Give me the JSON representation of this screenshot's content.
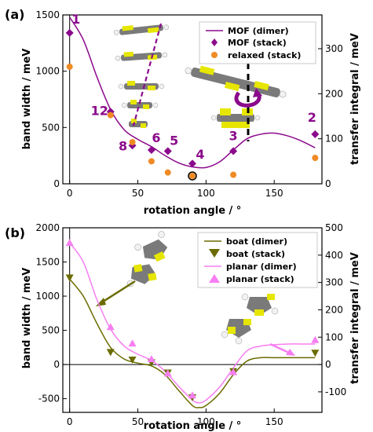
{
  "colors": {
    "mof": "#8b0a8b",
    "relaxed": "#f08a24",
    "boat": "#6b6b00",
    "planar": "#f77ef2",
    "sulfur": "#e6e600",
    "carbon": "#7a7a7a",
    "hydrogen": "#f2f2f2",
    "axis": "#000000"
  },
  "chart_data": [
    {
      "panel_label": "(a)",
      "type": "line",
      "xlabel": "rotation angle / °",
      "ylabel": "band width / meV",
      "y2label": "transfer integral / meV",
      "xlim": [
        -5,
        185
      ],
      "ylim": [
        0,
        1500
      ],
      "y2lim": [
        0,
        375
      ],
      "xticks": [
        0,
        50,
        100,
        150
      ],
      "yticks": [
        0,
        500,
        1000,
        1500
      ],
      "y2ticks": [
        0,
        100,
        200,
        300
      ],
      "legend_position": "top-right",
      "series": [
        {
          "name": "MOF (dimer)",
          "kind": "line",
          "color": "#8b0a8b",
          "x": [
            0,
            10,
            20,
            30,
            40,
            50,
            60,
            70,
            80,
            90,
            100,
            110,
            120,
            130,
            140,
            150,
            160,
            170,
            180
          ],
          "y": [
            1480,
            1280,
            950,
            660,
            480,
            395,
            330,
            250,
            185,
            150,
            145,
            195,
            300,
            400,
            440,
            450,
            425,
            380,
            320
          ]
        },
        {
          "name": "MOF (stack)",
          "kind": "marker-diamond",
          "color": "#8b0a8b",
          "x": [
            0,
            30,
            46,
            60,
            72,
            90,
            120,
            180
          ],
          "y": [
            1340,
            640,
            340,
            300,
            290,
            180,
            290,
            440
          ],
          "labels": [
            "1",
            "12",
            "8",
            "6",
            "5",
            "4",
            "3",
            "2"
          ]
        },
        {
          "name": "relaxed (stack)",
          "kind": "marker-circle",
          "color": "#f08a24",
          "x": [
            0,
            30,
            46,
            60,
            72,
            90,
            120,
            180
          ],
          "y": [
            1040,
            610,
            370,
            200,
            100,
            70,
            80,
            230
          ]
        }
      ],
      "highlighted_point": {
        "x": 90,
        "y": 70
      }
    },
    {
      "panel_label": "(b)",
      "type": "line",
      "xlabel": "rotation angle / °",
      "ylabel": "band width / meV",
      "y2label": "transfer integral / meV",
      "xlim": [
        -5,
        185
      ],
      "ylim": [
        -700,
        2000
      ],
      "y2lim": [
        -175,
        500
      ],
      "xticks": [
        0,
        50,
        100,
        150
      ],
      "yticks": [
        -500,
        0,
        500,
        1000,
        1500,
        2000
      ],
      "y2ticks": [
        -100,
        0,
        100,
        200,
        300,
        400,
        500
      ],
      "legend_position": "top-right",
      "series": [
        {
          "name": "boat (dimer)",
          "kind": "line",
          "color": "#6b6b00",
          "x": [
            0,
            10,
            20,
            30,
            40,
            50,
            60,
            70,
            80,
            90,
            95,
            100,
            110,
            120,
            130,
            140,
            150,
            160,
            170,
            180
          ],
          "y": [
            1250,
            1000,
            600,
            250,
            80,
            20,
            -20,
            -150,
            -380,
            -600,
            -630,
            -600,
            -420,
            -150,
            50,
            100,
            100,
            100,
            100,
            100
          ]
        },
        {
          "name": "boat (stack)",
          "kind": "marker-triangle-down",
          "color": "#6b6b00",
          "x": [
            0,
            30,
            46,
            60,
            72,
            90,
            120,
            180
          ],
          "y": [
            1270,
            180,
            70,
            30,
            -120,
            -480,
            -100,
            170
          ]
        },
        {
          "name": "planar (dimer)",
          "kind": "line",
          "color": "#f77ef2",
          "x": [
            0,
            10,
            20,
            30,
            40,
            50,
            60,
            70,
            80,
            90,
            95,
            100,
            110,
            120,
            130,
            140,
            150,
            160,
            170,
            180
          ],
          "y": [
            1780,
            1500,
            950,
            520,
            270,
            150,
            60,
            -100,
            -320,
            -520,
            -560,
            -520,
            -330,
            -50,
            200,
            270,
            290,
            300,
            300,
            300
          ]
        },
        {
          "name": "planar (stack)",
          "kind": "marker-triangle-up",
          "color": "#f77ef2",
          "x": [
            0,
            30,
            46,
            60,
            72,
            90,
            120,
            180
          ],
          "y": [
            1780,
            550,
            310,
            80,
            -130,
            -450,
            -110,
            360
          ]
        }
      ]
    }
  ]
}
